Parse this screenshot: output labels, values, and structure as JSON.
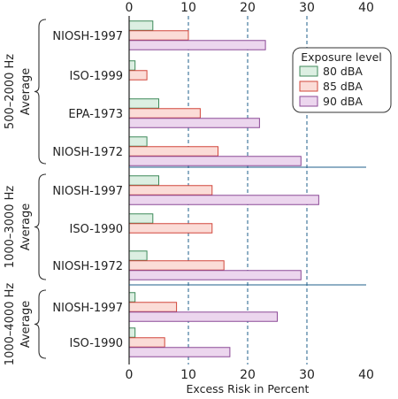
{
  "chart_data": {
    "type": "bar",
    "orientation": "horizontal",
    "title": "",
    "xlabel": "Excess Risk in Percent",
    "ylabel": "",
    "xlim": [
      0,
      40
    ],
    "xticks": [
      0,
      10,
      20,
      30,
      40
    ],
    "grid": "vertical dashed at 10, 20, 30",
    "legend": {
      "title": "Exposure level",
      "placement": "top-right"
    },
    "series": [
      {
        "name": "80 dBA",
        "color": "#dcefe2",
        "stroke": "#3e8a5a"
      },
      {
        "name": "85 dBA",
        "color": "#fbdcd7",
        "stroke": "#d2473b"
      },
      {
        "name": "90 dBA",
        "color": "#ecd6ee",
        "stroke": "#8c4a97"
      }
    ],
    "groups": [
      {
        "label_line1": "500–2000 Hz",
        "label_line2": "Average",
        "categories": [
          {
            "label": "NIOSH-1997",
            "values": [
              4,
              10,
              23
            ]
          },
          {
            "label": "ISO-1999",
            "values": [
              1,
              3,
              null
            ]
          },
          {
            "label": "EPA-1973",
            "values": [
              5,
              12,
              22
            ]
          },
          {
            "label": "NIOSH-1972",
            "values": [
              3,
              15,
              29
            ]
          }
        ]
      },
      {
        "label_line1": "1000–3000 Hz",
        "label_line2": "Average",
        "categories": [
          {
            "label": "NIOSH-1997",
            "values": [
              5,
              14,
              32
            ]
          },
          {
            "label": "ISO-1990",
            "values": [
              4,
              14,
              null
            ]
          },
          {
            "label": "NIOSH-1972",
            "values": [
              3,
              16,
              29
            ]
          }
        ]
      },
      {
        "label_line1": "1000–4000 Hz",
        "label_line2": "Average",
        "categories": [
          {
            "label": "NIOSH-1997",
            "values": [
              1,
              8,
              25
            ]
          },
          {
            "label": "ISO-1990",
            "values": [
              1,
              6,
              17
            ]
          }
        ]
      }
    ]
  }
}
